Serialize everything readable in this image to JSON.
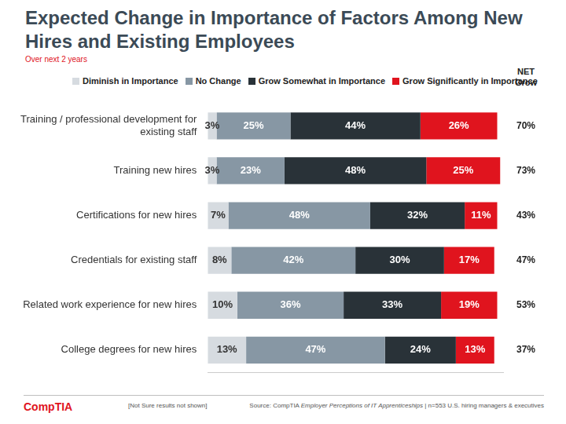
{
  "chart_data": {
    "type": "bar",
    "orientation": "horizontal",
    "stacked": true,
    "data_labels": true,
    "tick_labels": "y",
    "grid": false,
    "legend": "top",
    "title": "Expected Change in Importance of Factors Among New Hires and Existing Employees",
    "subtitle": "Over next 2 years",
    "categories": [
      "Training / professional development for existing staff",
      "Training new hires",
      "Certifications for new hires",
      "Credentials for existing staff",
      "Related work experience for new hires",
      "College degrees for new hires"
    ],
    "series": [
      {
        "name": "Diminish in Importance",
        "color": "#d6dbe0",
        "values": [
          3,
          3,
          7,
          8,
          10,
          13
        ],
        "value_labels": [
          "3%",
          "3%",
          "7%",
          "8%",
          "10%",
          "13%"
        ]
      },
      {
        "name": "No Change",
        "color": "#8797a4",
        "values": [
          25,
          23,
          48,
          42,
          36,
          47
        ],
        "value_labels": [
          "25%",
          "23%",
          "48%",
          "42%",
          "36%",
          "47%"
        ]
      },
      {
        "name": "Grow Somewhat in Importance",
        "color": "#293238",
        "values": [
          44,
          48,
          32,
          30,
          33,
          24
        ],
        "value_labels": [
          "44%",
          "48%",
          "32%",
          "30%",
          "33%",
          "24%"
        ]
      },
      {
        "name": "Grow Significantly in Importance",
        "color": "#e0141e",
        "values": [
          26,
          25,
          11,
          17,
          19,
          13
        ],
        "value_labels": [
          "26%",
          "25%",
          "11%",
          "17%",
          "19%",
          "13%"
        ]
      }
    ],
    "xlim": [
      0,
      100
    ],
    "net_grow": {
      "label": "NET Grow",
      "values": [
        70,
        73,
        43,
        47,
        53,
        37
      ],
      "value_labels": [
        "70%",
        "73%",
        "43%",
        "47%",
        "53%",
        "37%"
      ]
    },
    "note": "[Not Sure results not shown]",
    "source": [
      "Source: CompTIA ",
      "Employer Perceptions of IT Apprenticeships",
      " | n=553 U.S. hiring managers & executives"
    ],
    "logo": "CompTIA"
  }
}
